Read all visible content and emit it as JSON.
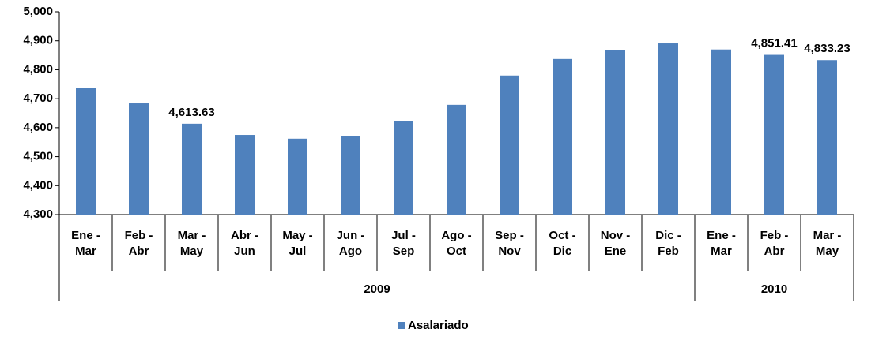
{
  "chart_data": {
    "type": "bar",
    "categories": [
      "Ene -\nMar",
      "Feb -\nAbr",
      "Mar -\nMay",
      "Abr -\nJun",
      "May -\nJul",
      "Jun -\nAgo",
      "Jul -\nSep",
      "Ago -\nOct",
      "Sep -\nNov",
      "Oct -\nDic",
      "Nov -\nEne",
      "Dic -\nFeb",
      "Ene -\nMar",
      "Feb -\nAbr",
      "Mar -\nMay"
    ],
    "groups": [
      {
        "label": "2009",
        "count": 12
      },
      {
        "label": "2010",
        "count": 3
      }
    ],
    "series": [
      {
        "name": "Asalariado",
        "color": "#4f81bd",
        "values": [
          4736,
          4684,
          4613.63,
          4575,
          4562,
          4570,
          4624,
          4679,
          4780,
          4837,
          4867,
          4891,
          4870,
          4851.41,
          4833.23
        ],
        "value_labels": [
          null,
          null,
          "4,613.63",
          null,
          null,
          null,
          null,
          null,
          null,
          null,
          null,
          null,
          null,
          "4,851.41",
          "4,833.23"
        ]
      }
    ],
    "ylim": [
      4300,
      5000
    ],
    "yticks": [
      {
        "value": 4300,
        "label": "4,300"
      },
      {
        "value": 4400,
        "label": "4,400"
      },
      {
        "value": 4500,
        "label": "4,500"
      },
      {
        "value": 4600,
        "label": "4,600"
      },
      {
        "value": 4700,
        "label": "4,700"
      },
      {
        "value": 4800,
        "label": "4,800"
      },
      {
        "value": 4900,
        "label": "4,900"
      },
      {
        "value": 5000,
        "label": "5,000"
      }
    ],
    "grid": false,
    "legend": "bottom"
  }
}
